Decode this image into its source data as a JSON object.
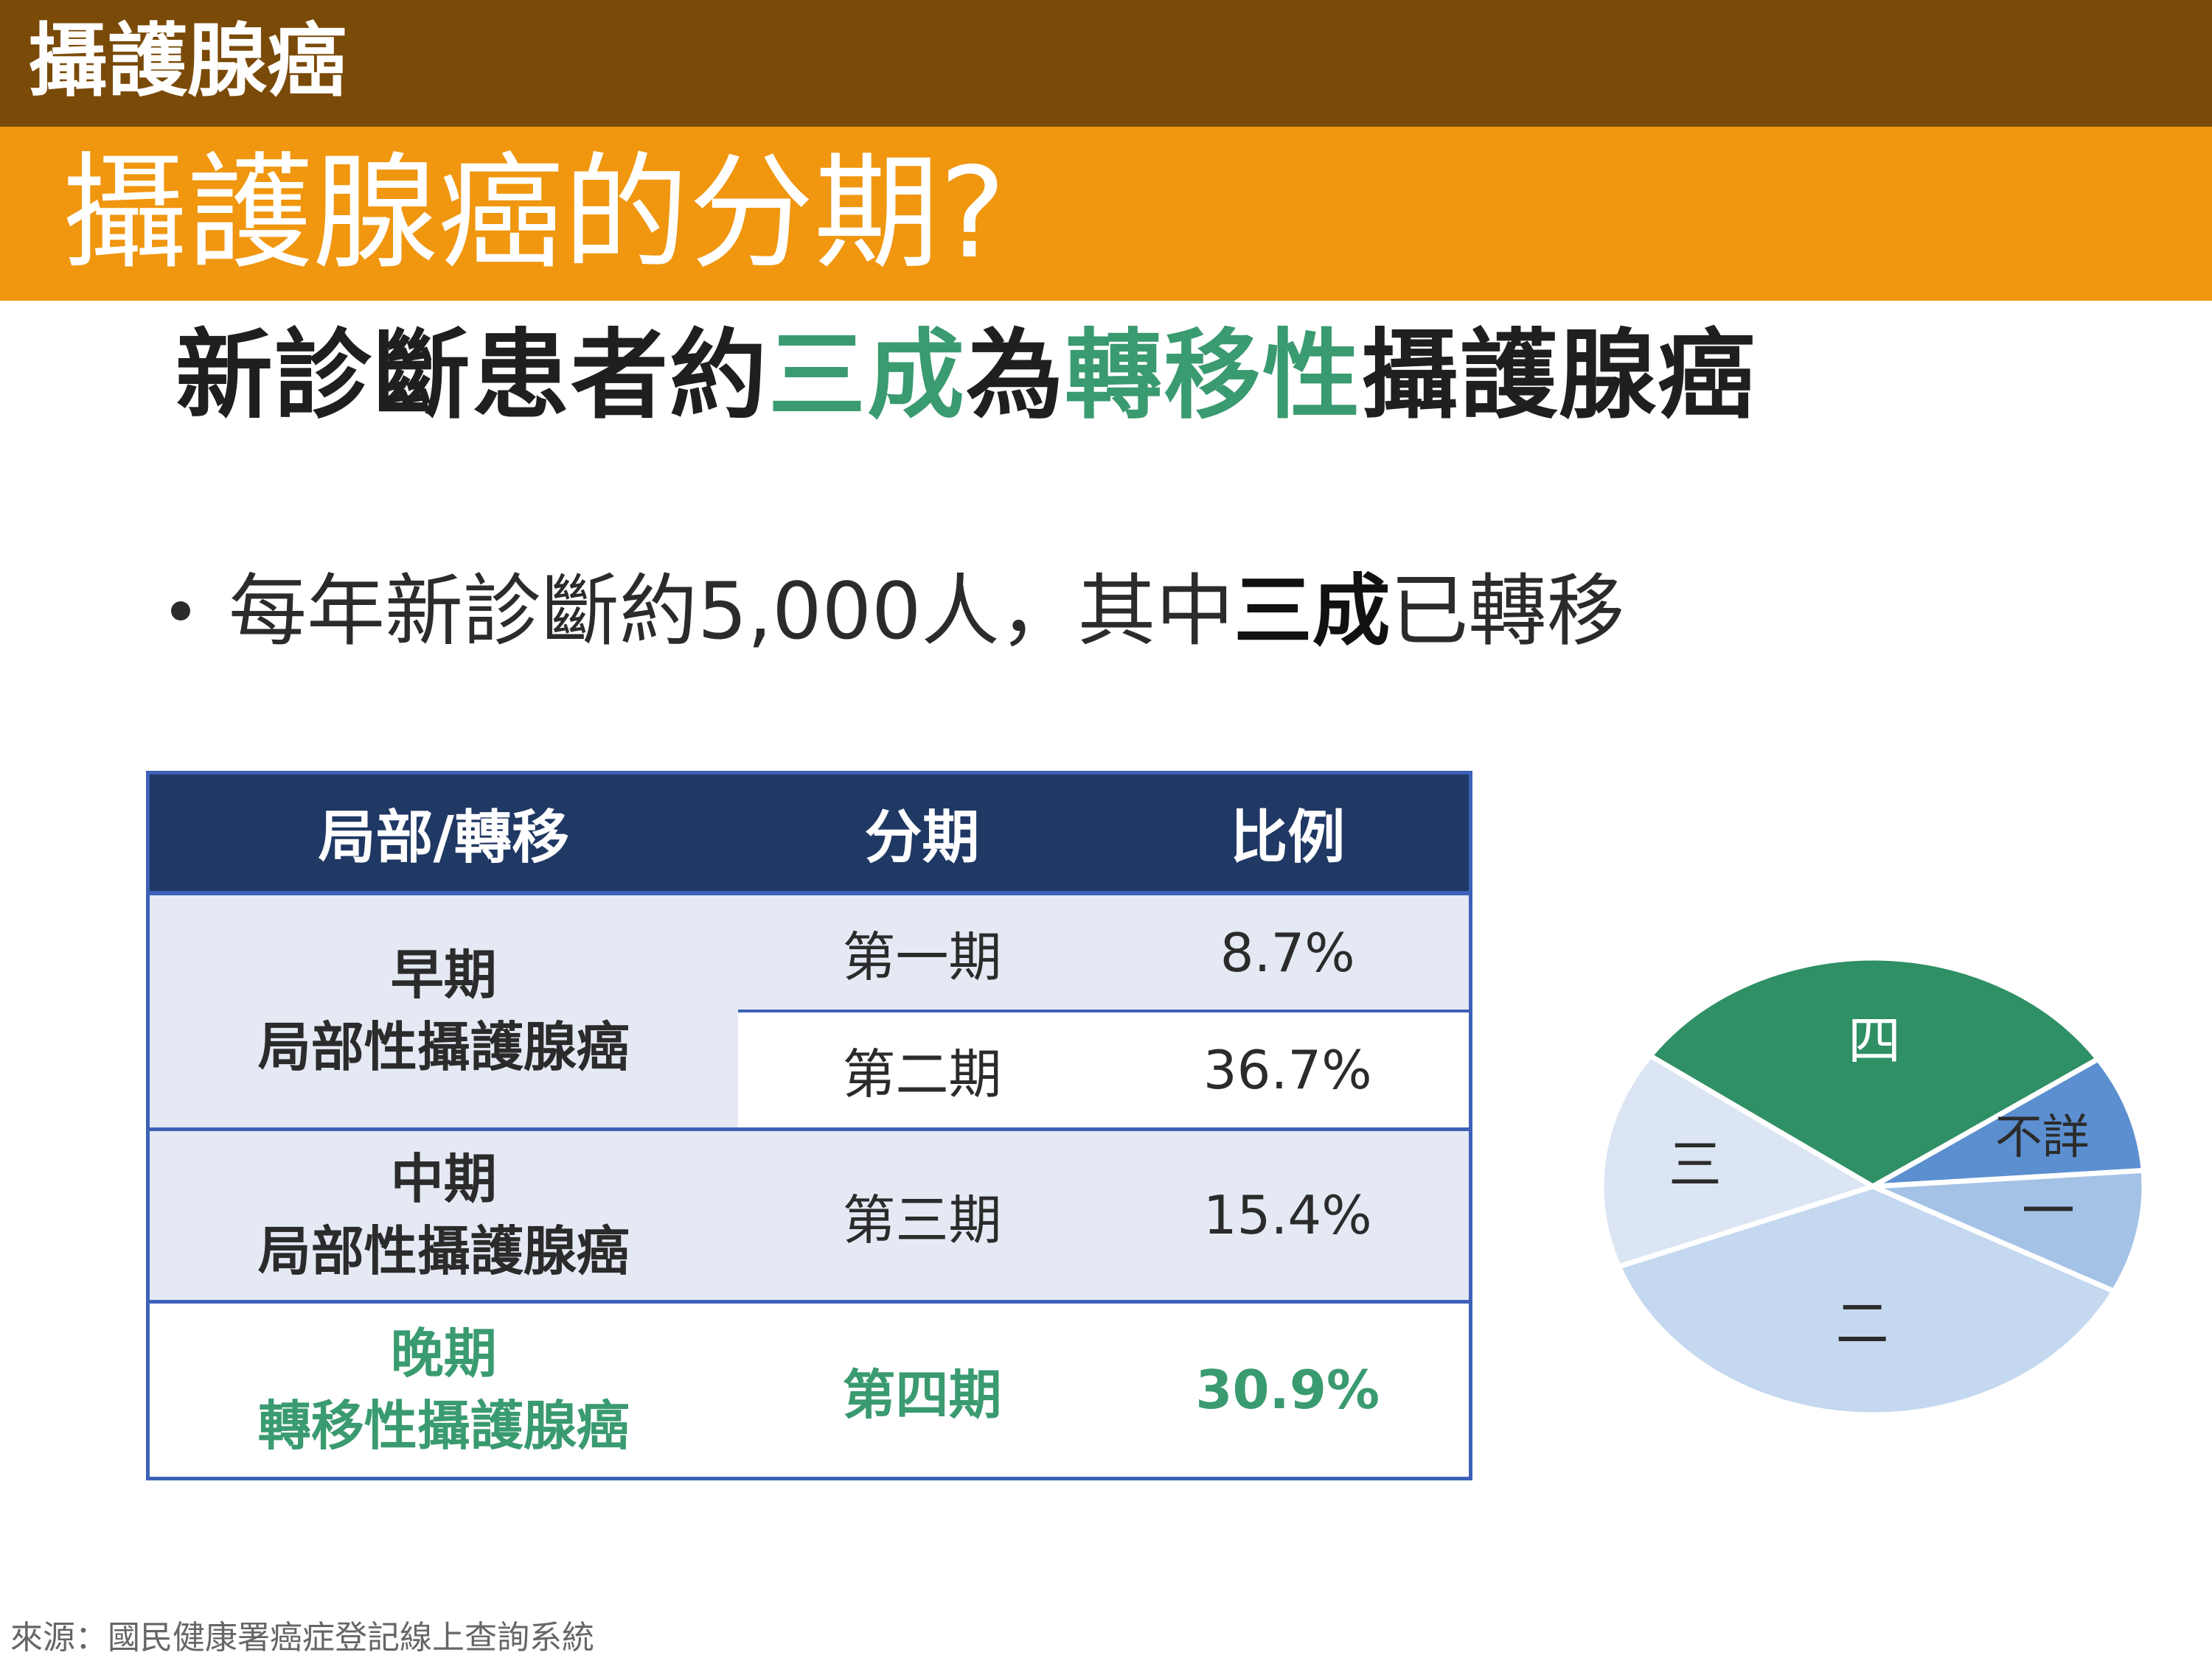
{
  "header": {
    "category": "攝護腺癌",
    "title": "攝護腺癌的分期?"
  },
  "headline": {
    "part1": "新診斷患者約",
    "highlight1": "三成",
    "part2": "為",
    "highlight2": "轉移性",
    "part3": "攝護腺癌"
  },
  "bullet": {
    "text1": "每年新診斷約5,000人，其中",
    "bold": "三成",
    "text2": "已轉移"
  },
  "table": {
    "headers": [
      "局部/轉移",
      "分期",
      "比例"
    ],
    "rows": [
      {
        "group_line1": "早期",
        "group_line2": "局部性攝護腺癌",
        "stage": "第一期",
        "percent": "8.7%"
      },
      {
        "stage": "第二期",
        "percent": "36.7%"
      },
      {
        "group_line1": "中期",
        "group_line2": "局部性攝護腺癌",
        "stage": "第三期",
        "percent": "15.4%"
      },
      {
        "group_line1": "晚期",
        "group_line2": "轉移性攝護腺癌",
        "stage": "第四期",
        "percent": "30.9%"
      }
    ]
  },
  "chart_data": {
    "type": "pie",
    "slices": [
      {
        "label": "一",
        "value": 8.7,
        "color": "#a4c2e6"
      },
      {
        "label": "二",
        "value": 36.7,
        "color": "#c4d8ef"
      },
      {
        "label": "三",
        "value": 15.4,
        "color": "#dbe5f3"
      },
      {
        "label": "四",
        "value": 30.9,
        "color": "#2f8f65"
      },
      {
        "label": "不詳",
        "value": 8.3,
        "color": "#5b8fd0"
      }
    ]
  },
  "source": "來源：國民健康署癌症登記線上查詢系統",
  "colors": {
    "brown_bar": "#7a4a08",
    "orange_bar": "#f0960f",
    "green_accent": "#3a9a70",
    "table_header": "#203864",
    "table_border": "#3d61b8"
  }
}
